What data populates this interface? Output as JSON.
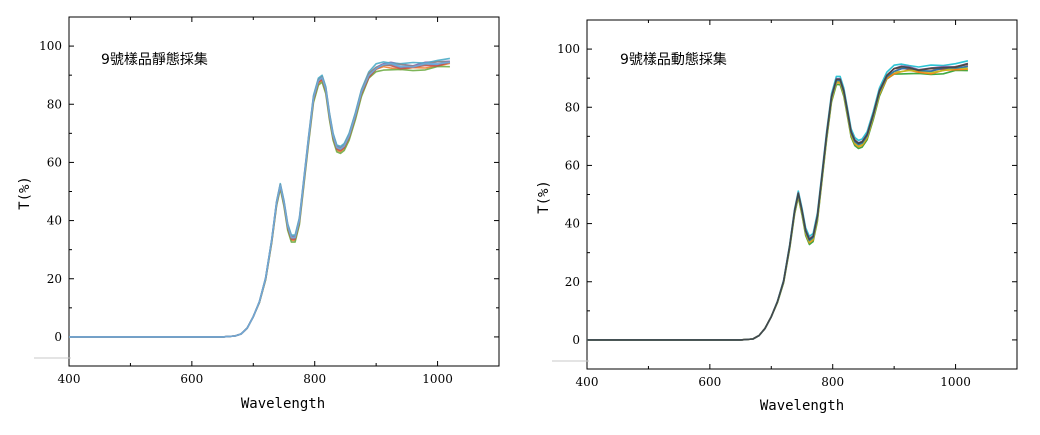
{
  "chart_data": [
    {
      "type": "line",
      "title": "9號樣品靜態採集",
      "xlabel": "Wavelength",
      "ylabel": "T(%)",
      "xlim": [
        400,
        1100
      ],
      "ylim": [
        -10,
        110
      ],
      "xticks": [
        400,
        600,
        800,
        1000
      ],
      "yticks": [
        0,
        20,
        40,
        60,
        80,
        100
      ],
      "grid": false,
      "series": [
        {
          "color": "#5b9bd5",
          "y_offset": 0.0
        },
        {
          "color": "#ed7d31",
          "y_offset": -0.8
        },
        {
          "color": "#70ad47",
          "y_offset": -1.4
        },
        {
          "color": "#7f60a8",
          "y_offset": 0.6
        },
        {
          "color": "#c0504d",
          "y_offset": -0.4
        },
        {
          "color": "#4bacc6",
          "y_offset": 1.0
        },
        {
          "color": "#8c8c8c",
          "y_offset": 0.3
        },
        {
          "color": "#6fa8dc",
          "y_offset": 0.1
        }
      ],
      "x": [
        400,
        600,
        650,
        670,
        680,
        690,
        700,
        710,
        720,
        730,
        738,
        744,
        750,
        756,
        762,
        768,
        775,
        782,
        790,
        798,
        806,
        812,
        818,
        824,
        830,
        836,
        842,
        848,
        856,
        866,
        876,
        888,
        900,
        912,
        924,
        940,
        960,
        980,
        1000,
        1020
      ],
      "y": [
        0,
        0,
        0,
        0.3,
        1,
        3,
        7,
        12,
        20,
        33,
        46,
        52,
        46,
        38,
        34,
        34,
        40,
        53,
        68,
        82,
        88,
        89,
        85,
        76,
        69,
        65,
        64.5,
        65.5,
        69,
        76,
        84,
        90,
        92.5,
        93.5,
        93.5,
        93,
        93,
        93.5,
        94,
        94.5
      ]
    },
    {
      "type": "line",
      "title": "9號樣品動態採集",
      "xlabel": "Wavelength",
      "ylabel": "T(%)",
      "xlim": [
        400,
        1100
      ],
      "ylim": [
        -10,
        110
      ],
      "xticks": [
        400,
        600,
        800,
        1000
      ],
      "yticks": [
        0,
        20,
        40,
        60,
        80,
        100
      ],
      "grid": false,
      "series": [
        {
          "color": "#c0504d",
          "y_offset": 0.0
        },
        {
          "color": "#17becf",
          "y_offset": 1.6
        },
        {
          "color": "#2ca02c",
          "y_offset": -1.2
        },
        {
          "color": "#ff7f0e",
          "y_offset": -0.6
        },
        {
          "color": "#7f60a8",
          "y_offset": 0.8
        },
        {
          "color": "#8c564b",
          "y_offset": 0.4
        },
        {
          "color": "#bcbd22",
          "y_offset": -0.3
        },
        {
          "color": "#1f77b4",
          "y_offset": 0.2
        },
        {
          "color": "#444444",
          "y_offset": 0.6
        }
      ],
      "x": [
        400,
        600,
        650,
        670,
        680,
        690,
        700,
        710,
        720,
        730,
        738,
        744,
        750,
        756,
        762,
        768,
        775,
        782,
        790,
        798,
        806,
        812,
        818,
        824,
        830,
        836,
        842,
        848,
        856,
        866,
        876,
        888,
        900,
        912,
        924,
        940,
        960,
        980,
        1000,
        1020
      ],
      "y": [
        0,
        0,
        0,
        0.3,
        1.5,
        4,
        8,
        13,
        20,
        32,
        44,
        50,
        44,
        37,
        34,
        35,
        42,
        55,
        70,
        83,
        89,
        89,
        85,
        78,
        71,
        68,
        67,
        67.5,
        70,
        77,
        85,
        90.5,
        92.5,
        93,
        93,
        92.5,
        92.5,
        93,
        93.5,
        94
      ]
    }
  ]
}
